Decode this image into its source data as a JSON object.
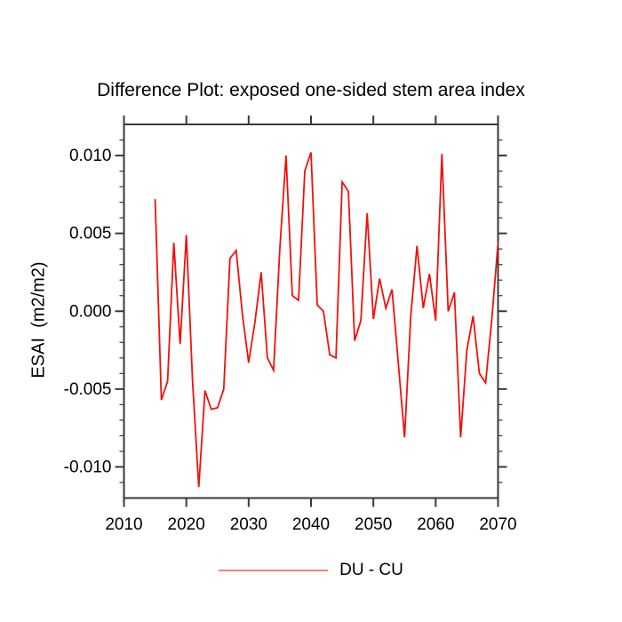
{
  "page": {
    "background": "#ffffff"
  },
  "chart_data": {
    "type": "line",
    "title": "Difference Plot: exposed one-sided stem area index",
    "xlabel": "",
    "ylabel": "ESAI  (m2/m2)",
    "xlim": [
      2010,
      2070
    ],
    "ylim": [
      -0.012,
      0.012
    ],
    "grid": false,
    "x_tick_values": [
      2010,
      2020,
      2030,
      2040,
      2050,
      2060,
      2070
    ],
    "x_tick_labels": [
      "2010",
      "2020",
      "2030",
      "2040",
      "2050",
      "2060",
      "2070"
    ],
    "y_tick_values": [
      0.01,
      0.005,
      0.0,
      -0.005,
      -0.01
    ],
    "y_tick_labels": [
      "0.010",
      "0.005",
      "0.000",
      "-0.005",
      "-0.010"
    ],
    "y_minor_step": 0.001,
    "x": [
      2015,
      2016,
      2017,
      2018,
      2019,
      2020,
      2021,
      2022,
      2023,
      2024,
      2025,
      2026,
      2027,
      2028,
      2029,
      2030,
      2031,
      2032,
      2033,
      2034,
      2035,
      2036,
      2037,
      2038,
      2039,
      2040,
      2041,
      2042,
      2043,
      2044,
      2045,
      2046,
      2047,
      2048,
      2049,
      2050,
      2051,
      2052,
      2053,
      2054,
      2055,
      2056,
      2057,
      2058,
      2059,
      2060,
      2061,
      2062,
      2063,
      2064,
      2065,
      2066,
      2067,
      2068,
      2069,
      2070
    ],
    "series": [
      {
        "name": "DU - CU",
        "color": "#f2100a",
        "values": [
          0.0072,
          -0.0057,
          -0.0045,
          0.0044,
          -0.0021,
          0.0049,
          -0.0045,
          -0.0113,
          -0.0051,
          -0.0063,
          -0.0062,
          -0.005,
          0.0034,
          0.0039,
          -0.0002,
          -0.0033,
          -0.0007,
          0.0025,
          -0.003,
          -0.0038,
          0.004,
          0.01,
          0.001,
          0.0007,
          0.009,
          0.0102,
          0.0004,
          0.0,
          -0.0028,
          -0.003,
          0.0083,
          0.0077,
          -0.0019,
          -0.0006,
          0.0063,
          -0.0005,
          0.0021,
          0.0002,
          0.0014,
          -0.0033,
          -0.0081,
          -0.0003,
          0.0042,
          0.0002,
          0.0024,
          -0.0006,
          0.0101,
          0.0,
          0.0012,
          -0.0081,
          -0.0025,
          -0.0003,
          -0.004,
          -0.0046,
          -0.0005,
          0.0044
        ]
      }
    ],
    "legend": {
      "label": "DU - CU",
      "position": "bottom-center",
      "swatch_color": "#f4827a"
    },
    "axis_color": "#3a3a3a",
    "text_color": "#000000"
  }
}
